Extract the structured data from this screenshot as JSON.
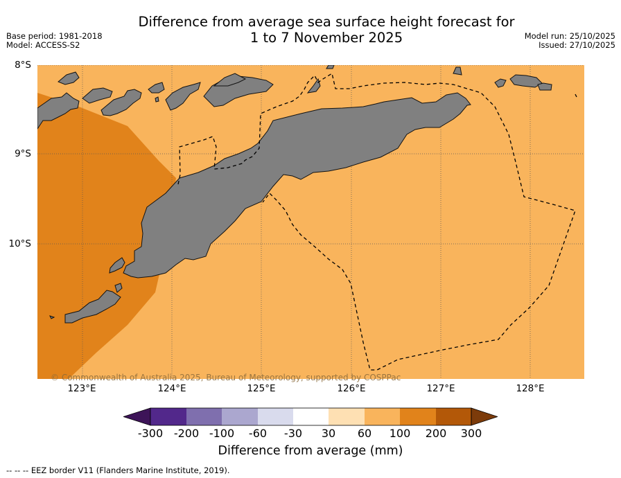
{
  "title": {
    "line1": "Difference from average sea surface height forecast for",
    "line2": "1 to 7 November 2025"
  },
  "meta": {
    "base_period": "Base period: 1981-2018",
    "model": "Model: ACCESS-S2",
    "model_run": "Model run: 25/10/2025",
    "issued": "Issued: 27/10/2025"
  },
  "map": {
    "lat_labels": [
      "8°S",
      "9°S",
      "10°S"
    ],
    "lon_labels": [
      "123°E",
      "124°E",
      "125°E",
      "126°E",
      "127°E",
      "128°E"
    ],
    "credit": "© Commonwealth of Australia 2025, Bureau of Meteorology, supported by COSPPac",
    "colors": {
      "anomaly_60_100": "#f9b45c",
      "anomaly_100_200": "#e1831b",
      "land": "#808080"
    }
  },
  "colorbar": {
    "ticks": [
      "-300",
      "-200",
      "-100",
      "-60",
      "-30",
      "30",
      "60",
      "100",
      "200",
      "300"
    ],
    "colors": [
      "#3d1458",
      "#52288b",
      "#7f6fae",
      "#aba7cf",
      "#d9dbed",
      "#ffffff",
      "#fee0b3",
      "#f9b45c",
      "#e1831b",
      "#b35808",
      "#7c3b0a"
    ],
    "label": "Difference from average (mm)"
  },
  "legend": {
    "eez": "--  --  -- EEZ border V11 (Flanders Marine Institute, 2019)."
  }
}
